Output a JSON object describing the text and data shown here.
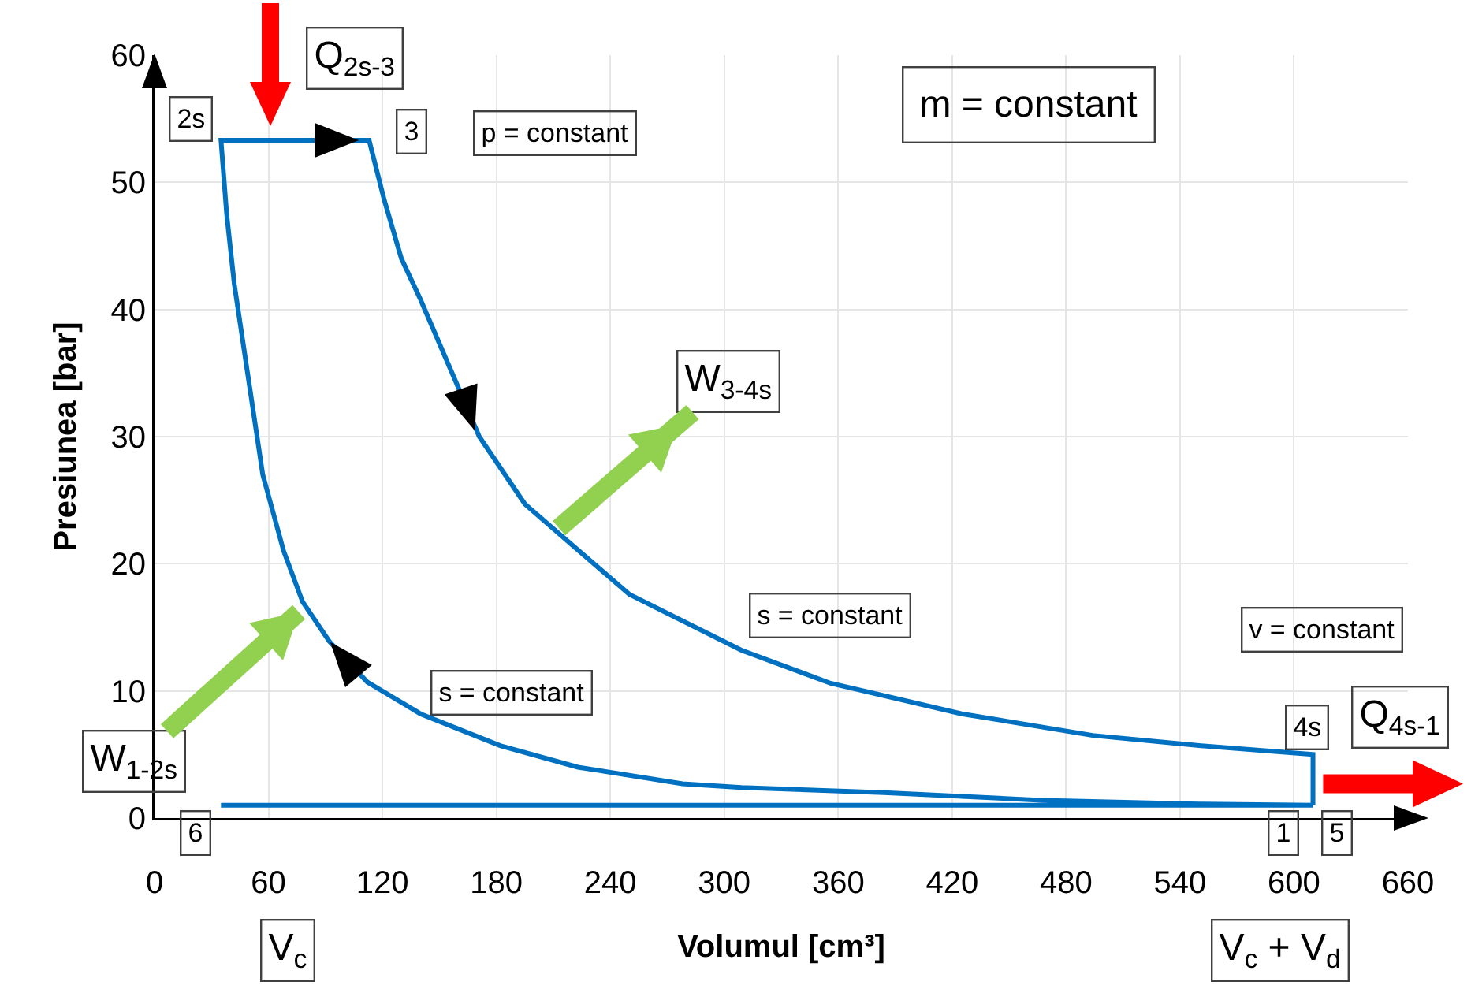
{
  "chart_data": {
    "type": "line",
    "xlabel": "Volumul [cm³]",
    "ylabel": "Presiunea [bar]",
    "series": [
      {
        "color": "#0070c0",
        "x": [
          35,
          610,
          550,
          467,
          384,
          309,
          278,
          223,
          182,
          140,
          112,
          92,
          78,
          68,
          57,
          49,
          42,
          38,
          35,
          113,
          121,
          130,
          140,
          159,
          171,
          195,
          212,
          250,
          309,
          356,
          425,
          494,
          550,
          610,
          610
        ],
        "values": [
          1,
          1,
          1.1,
          1.4,
          2,
          2.4,
          2.7,
          4,
          5.7,
          8.2,
          10.7,
          13.9,
          17,
          21,
          27,
          35,
          42,
          47.5,
          53.3,
          53.3,
          48.6,
          44,
          40.8,
          34.2,
          30,
          24.7,
          22.5,
          17.6,
          13.2,
          10.6,
          8.2,
          6.5,
          5.7,
          5,
          1
        ]
      }
    ],
    "xlim": [
      0,
      660
    ],
    "ylim": [
      0,
      60
    ],
    "xticks": [
      0,
      60,
      120,
      180,
      240,
      300,
      360,
      420,
      480,
      540,
      600,
      660
    ],
    "yticks": [
      0,
      10,
      20,
      30,
      40,
      50,
      60
    ],
    "grid": true,
    "annotations": [
      {
        "text": "2s",
        "x": 35,
        "y": 53.3
      },
      {
        "text": "3",
        "x": 113,
        "y": 53.3
      },
      "p = constant",
      {
        "text": "Q$_{2s-3}$",
        "x": 61,
        "y": 53.3
      },
      {
        "text": "W$_{3-4s}$",
        "x": 213,
        "y": 22.8
      },
      {
        "text": "s = constant",
        "x": 356,
        "y": 10.6
      },
      {
        "text": "s = constant",
        "x": 188,
        "y": 5.5
      },
      "v = constant",
      {
        "text": "4s",
        "x": 610,
        "y": 5
      },
      {
        "text": "Q$_{4s-1}$",
        "x": 610,
        "y": 3
      },
      {
        "text": "W$_{1-2s}$",
        "x": 76,
        "y": 16.2
      },
      {
        "text": "6",
        "x": 35,
        "y": 1
      },
      {
        "text": "1",
        "x": 610,
        "y": 1
      },
      {
        "text": "5",
        "x": 610,
        "y": 1
      },
      "V$_{c}$",
      "V$_{c}$ + V$_{d}$",
      "m = constant"
    ]
  }
}
